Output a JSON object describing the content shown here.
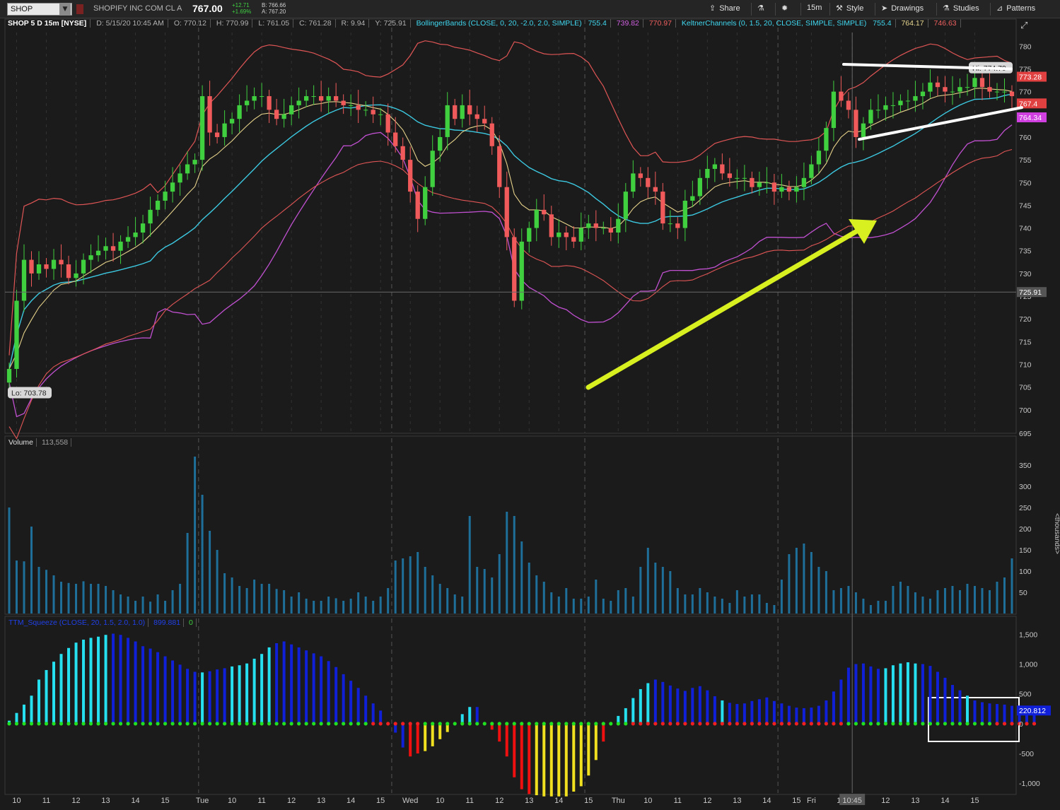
{
  "toolbar": {
    "symbol": "SHOP",
    "symbol_dropdown": "▼",
    "company": "SHOPIFY INC COM CL A",
    "last_price": "767.00",
    "change": "+12.71",
    "change_pct": "+1.69%",
    "bid": "B: 766.66",
    "ask": "A: 767.20",
    "buttons": [
      {
        "label": "Share",
        "icon": "share-icon"
      },
      {
        "label": "",
        "icon": "flask-icon"
      },
      {
        "label": "",
        "icon": "gear-icon"
      },
      {
        "label": "15m",
        "icon": ""
      },
      {
        "label": "Style",
        "icon": "style-icon"
      },
      {
        "label": "Drawings",
        "icon": "cursor-icon"
      },
      {
        "label": "Studies",
        "icon": "studies-icon"
      },
      {
        "label": "Patterns",
        "icon": "patterns-icon"
      }
    ]
  },
  "header": {
    "chart_id": "SHOP 5 D 15m [NYSE]",
    "date": "D: 5/15/20 10:45 AM",
    "open": "O: 770.12",
    "high": "H: 770.99",
    "low": "L: 761.05",
    "close": "C: 761.28",
    "range": "R: 9.94",
    "y": "Y: 725.91",
    "bb_label": "BollingerBands (CLOSE, 0, 20, -2.0, 2.0, SIMPLE)",
    "bb_mid": "755.4",
    "bb_low": "739.82",
    "bb_up": "770.97",
    "kc_label": "KeltnerChannels (0, 1.5, 20, CLOSE, SIMPLE, SIMPLE)",
    "kc_mid": "755.4",
    "kc_up": "764.17",
    "kc_low": "746.63"
  },
  "volume_pane": {
    "label": "Volume",
    "value": "113,558",
    "unit": "<thousands>"
  },
  "squeeze_pane": {
    "label": "TTM_Squeeze (CLOSE, 20, 1.5, 2.0, 1.0)",
    "value": "899.881",
    "alert": "0"
  },
  "colors": {
    "up": "#3fcf3f",
    "down": "#f05a5a",
    "bb_band": "#c050d0",
    "kc_band": "#e05555",
    "mid_cyan": "#3cc8e0",
    "ema_tan": "#e6d28a",
    "vol_bar": "#1e6f99",
    "sq_cyan": "#26e0f0",
    "sq_blue": "#1020d8",
    "sq_red": "#f01010",
    "sq_yellow": "#f0e020",
    "arrow": "#d8f020"
  },
  "chart_data": {
    "type": "candlestick",
    "interval": "15m",
    "price_range": [
      695,
      783
    ],
    "price_ticks": [
      700,
      705,
      710,
      715,
      720,
      725,
      730,
      735,
      740,
      745,
      750,
      755,
      760,
      765,
      770,
      775,
      780
    ],
    "price_tick_labels": [
      "700",
      "705",
      "710",
      "715",
      "720",
      "725",
      "730",
      "735",
      "740",
      "745",
      "750",
      "755",
      "760",
      "765",
      "770",
      "775",
      "780"
    ],
    "price_tags": {
      "upper_band": "773.28",
      "last": "767.4",
      "bb_lower": "764.34",
      "crosshair": "725.91"
    },
    "hi_label": "Hi: 774.79",
    "lo_label": "Lo: 703.78",
    "x_labels": [
      "10",
      "11",
      "12",
      "13",
      "14",
      "15",
      "Tue",
      "10",
      "11",
      "12",
      "13",
      "14",
      "15",
      "Wed",
      "10",
      "11",
      "12",
      "13",
      "14",
      "15",
      "Thu",
      "10",
      "11",
      "12",
      "13",
      "14",
      "15",
      "Fri",
      "10",
      "10:45",
      "12",
      "13",
      "14",
      "15"
    ],
    "x_label_bars": [
      1,
      5,
      9,
      13,
      17,
      21,
      26,
      30,
      34,
      38,
      42,
      46,
      50,
      54,
      58,
      62,
      66,
      70,
      74,
      78,
      82,
      86,
      90,
      94,
      98,
      102,
      106,
      108,
      112,
      113.5,
      118,
      122,
      126,
      130
    ],
    "session_starts": [
      26,
      52,
      78,
      104
    ],
    "close": [
      709,
      724,
      733,
      730,
      732,
      731,
      733,
      732,
      729,
      730,
      733,
      734,
      735,
      736,
      735,
      737,
      738,
      739,
      741,
      744,
      746,
      748,
      750,
      752,
      754,
      755,
      769,
      761,
      760,
      763,
      764,
      767,
      768,
      769,
      769,
      766,
      764,
      765,
      767,
      768,
      769,
      769,
      768,
      769,
      768,
      767,
      767,
      766,
      766,
      765,
      765,
      761,
      758,
      755,
      748,
      742,
      749,
      757,
      760,
      767,
      764,
      767,
      765,
      764,
      763,
      758,
      749,
      738,
      724,
      737,
      740,
      744,
      743,
      738,
      739,
      738,
      737,
      740,
      741,
      740,
      740,
      739,
      742,
      748,
      752,
      751,
      749,
      748,
      741,
      741,
      740,
      746,
      747,
      751,
      753,
      754,
      752,
      751,
      751,
      751,
      749,
      750,
      750,
      748,
      749,
      748,
      749,
      751,
      754,
      757,
      762,
      770,
      768,
      766,
      760,
      763,
      766,
      766,
      767,
      767,
      768,
      768,
      769,
      770,
      772,
      771,
      770,
      770,
      771,
      771,
      773,
      771,
      770,
      770,
      770,
      769
    ],
    "volume_range": [
      0,
      380
    ],
    "volume_ticks": [
      50,
      100,
      150,
      200,
      250,
      300,
      350
    ],
    "volume": [
      250,
      125,
      123,
      205,
      110,
      103,
      90,
      75,
      72,
      70,
      76,
      70,
      70,
      65,
      55,
      45,
      40,
      30,
      40,
      28,
      45,
      30,
      55,
      70,
      190,
      370,
      280,
      195,
      150,
      95,
      85,
      65,
      60,
      80,
      70,
      70,
      58,
      55,
      40,
      50,
      35,
      30,
      30,
      40,
      36,
      30,
      35,
      50,
      40,
      30,
      40,
      60,
      125,
      130,
      135,
      145,
      110,
      90,
      70,
      60,
      45,
      40,
      230,
      110,
      105,
      85,
      140,
      240,
      230,
      170,
      120,
      90,
      75,
      50,
      40,
      60,
      35,
      35,
      40,
      80,
      35,
      30,
      55,
      60,
      40,
      110,
      155,
      120,
      110,
      100,
      60,
      45,
      45,
      60,
      50,
      40,
      35,
      25,
      55,
      40,
      45,
      45,
      25,
      20,
      80,
      140,
      155,
      165,
      145,
      110,
      100,
      55,
      60,
      65,
      50,
      35,
      20,
      30,
      30,
      65,
      75,
      65,
      50,
      40,
      35,
      55,
      60,
      65,
      55,
      70,
      65,
      60,
      55,
      75,
      85,
      130
    ],
    "squeeze_range": [
      -1140,
      1540
    ],
    "squeeze_ticks": [
      1500,
      1000,
      500,
      0,
      -500,
      -1000
    ],
    "squeeze_tick_labels": [
      "1,500",
      "1,000",
      "500",
      "0",
      "-500",
      "-1,000"
    ],
    "squeeze_tag": "220.812",
    "momentum": [
      50,
      180,
      320,
      470,
      740,
      900,
      1040,
      1170,
      1270,
      1360,
      1410,
      1440,
      1460,
      1490,
      1510,
      1490,
      1440,
      1380,
      1300,
      1260,
      1200,
      1130,
      1060,
      990,
      920,
      870,
      860,
      880,
      910,
      930,
      960,
      980,
      1010,
      1090,
      1170,
      1280,
      1350,
      1380,
      1330,
      1280,
      1230,
      1180,
      1130,
      1050,
      950,
      830,
      720,
      600,
      470,
      340,
      220,
      0,
      -150,
      -400,
      -550,
      -500,
      -460,
      -380,
      -260,
      -140,
      0,
      160,
      280,
      280,
      0,
      -100,
      -300,
      -550,
      -900,
      -1100,
      -1180,
      -1200,
      -1220,
      -1220,
      -1220,
      -1220,
      -1140,
      -1050,
      -870,
      -610,
      -300,
      0,
      130,
      260,
      430,
      580,
      680,
      740,
      700,
      640,
      590,
      550,
      600,
      630,
      560,
      460,
      390,
      350,
      330,
      340,
      380,
      410,
      440,
      380,
      340,
      300,
      270,
      260,
      270,
      300,
      390,
      540,
      740,
      940,
      1000,
      1010,
      960,
      920,
      930,
      980,
      1010,
      1030,
      1010,
      1000,
      970,
      870,
      770,
      650,
      560,
      470,
      390,
      360,
      340,
      330,
      320,
      300,
      280,
      250,
      220
    ],
    "squeeze_colors": "ccccccccccccccbbbbbbbbbbbbcbbbccccccbbbbbbbbbbbbbbbbbbrryyyycccbrrrrrrryyyyyyyyyrrcccccbbbbbbbbbcbbbbbbbbbbbbbbbbbbbbbcccccbbbbbbcbbbbbbbbbbcbbbcbbbbbbbb",
    "squeeze_dots": "gggggggggggggggggggggggggggggggggggggggggggggggggrrrrrrrggggggggggggggggggggggggggggrrrrrrrrrrrrrrrrrrrrrrrrrrrrrggggggggggggggggggggrrrrrrrrrrrrrrrrrrrr"
  }
}
